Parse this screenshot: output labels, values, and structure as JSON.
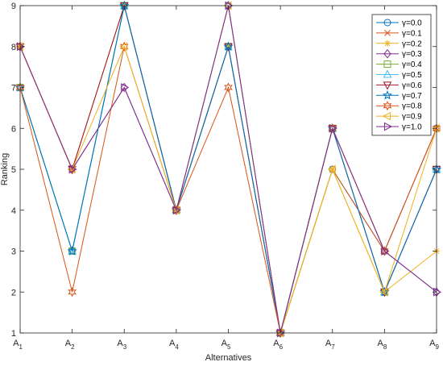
{
  "chart_data": {
    "type": "line",
    "xlabel": "Alternatives",
    "ylabel": "Ranking",
    "ylim": [
      1,
      9
    ],
    "grid": false,
    "legend_position": "top-right",
    "categories": [
      {
        "base": "A",
        "sub": "1"
      },
      {
        "base": "A",
        "sub": "2"
      },
      {
        "base": "A",
        "sub": "3"
      },
      {
        "base": "A",
        "sub": "4"
      },
      {
        "base": "A",
        "sub": "5"
      },
      {
        "base": "A",
        "sub": "6"
      },
      {
        "base": "A",
        "sub": "7"
      },
      {
        "base": "A",
        "sub": "8"
      },
      {
        "base": "A",
        "sub": "9"
      }
    ],
    "yticks": [
      1,
      2,
      3,
      4,
      5,
      6,
      7,
      8,
      9
    ],
    "series": [
      {
        "name": "γ=0.0",
        "color": "#0072BD",
        "marker": "circle",
        "values": [
          7,
          3,
          9,
          4,
          9,
          1,
          5,
          3,
          6
        ]
      },
      {
        "name": "γ=0.1",
        "color": "#D95319",
        "marker": "x",
        "values": [
          8,
          5,
          9,
          4,
          8,
          1,
          5,
          3,
          6
        ]
      },
      {
        "name": "γ=0.2",
        "color": "#EDB120",
        "marker": "asterisk",
        "values": [
          8,
          5,
          9,
          4,
          8,
          1,
          5,
          2,
          3
        ]
      },
      {
        "name": "γ=0.3",
        "color": "#7E2F8E",
        "marker": "diamond",
        "values": [
          8,
          5,
          7,
          4,
          9,
          1,
          6,
          3,
          2
        ]
      },
      {
        "name": "γ=0.4",
        "color": "#77AC30",
        "marker": "square",
        "values": [
          7,
          3,
          9,
          4,
          8,
          1,
          6,
          2,
          5
        ]
      },
      {
        "name": "γ=0.5",
        "color": "#4DBEEE",
        "marker": "triangle-up",
        "values": [
          7,
          3,
          9,
          4,
          8,
          1,
          6,
          2,
          5
        ]
      },
      {
        "name": "γ=0.6",
        "color": "#A2142F",
        "marker": "triangle-down",
        "values": [
          8,
          5,
          9,
          4,
          8,
          1,
          6,
          2,
          5
        ]
      },
      {
        "name": "γ=0.7",
        "color": "#0072BD",
        "marker": "pentagram",
        "values": [
          7,
          3,
          9,
          4,
          8,
          1,
          6,
          2,
          5
        ]
      },
      {
        "name": "γ=0.8",
        "color": "#D95319",
        "marker": "hexagram",
        "values": [
          7,
          2,
          8,
          4,
          7,
          1,
          6,
          3,
          6
        ]
      },
      {
        "name": "γ=0.9",
        "color": "#EDB120",
        "marker": "triangle-left",
        "values": [
          8,
          5,
          8,
          4,
          9,
          1,
          5,
          2,
          6
        ]
      },
      {
        "name": "γ=1.0",
        "color": "#7E2F8E",
        "marker": "triangle-right",
        "values": [
          8,
          5,
          7,
          4,
          9,
          1,
          6,
          3,
          2
        ]
      }
    ]
  }
}
